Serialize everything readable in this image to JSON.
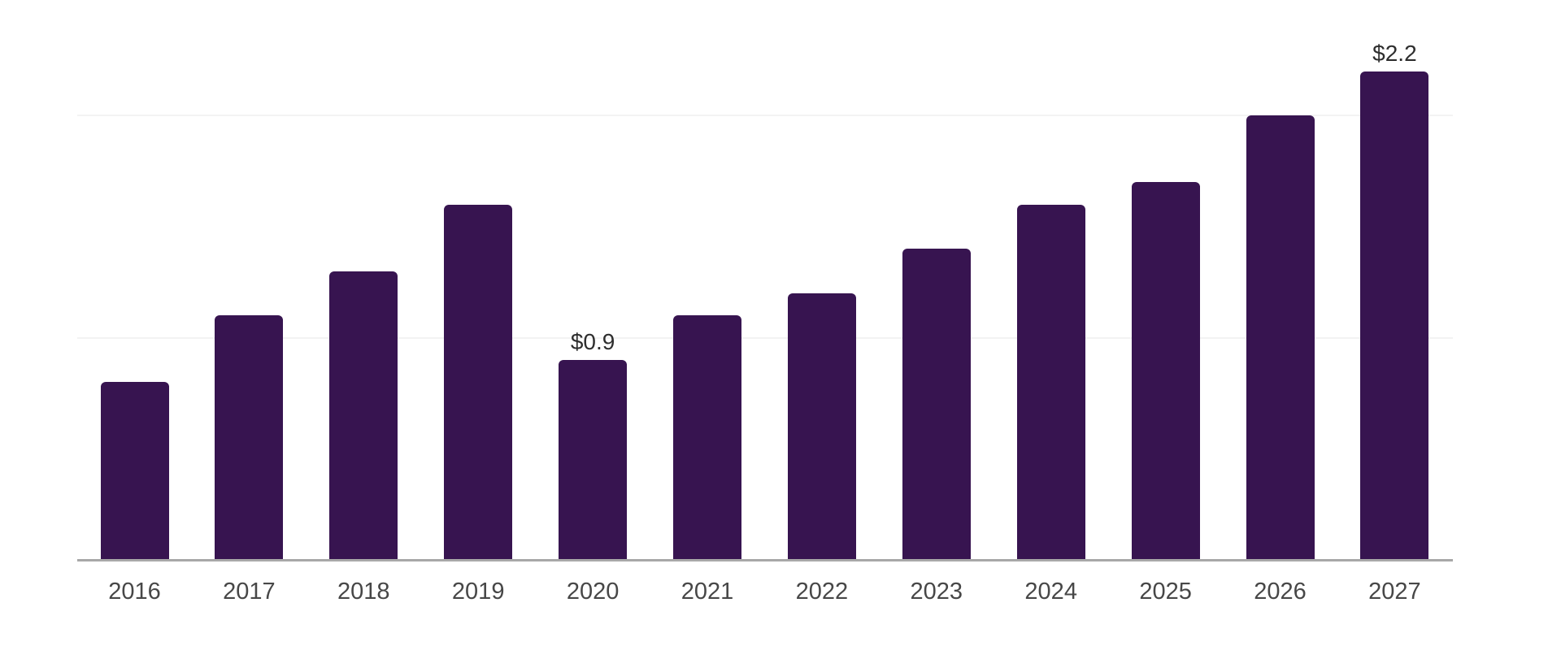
{
  "chart_data": {
    "type": "bar",
    "title": "",
    "xlabel": "",
    "ylabel": "",
    "categories": [
      "2016",
      "2017",
      "2018",
      "2019",
      "2020",
      "2021",
      "2022",
      "2023",
      "2024",
      "2025",
      "2026",
      "2027"
    ],
    "values": [
      0.8,
      1.1,
      1.3,
      1.6,
      0.9,
      1.1,
      1.2,
      1.4,
      1.6,
      1.7,
      2.0,
      2.2
    ],
    "bar_value_labels": [
      "",
      "",
      "",
      "",
      "$0.9",
      "",
      "",
      "",
      "",
      "",
      "",
      "$2.2"
    ],
    "unit_prefix": "$",
    "ylim": [
      0,
      2.5
    ],
    "gridline_values": [
      1.0,
      2.0
    ],
    "grid": "horizontal-only",
    "legend": "none",
    "colors": {
      "bar": "#371450",
      "axis_line": "#a8a8a8",
      "gridline": "#f3f3f3",
      "value_label": "#2e2e2e",
      "tick_label": "#474747"
    }
  }
}
